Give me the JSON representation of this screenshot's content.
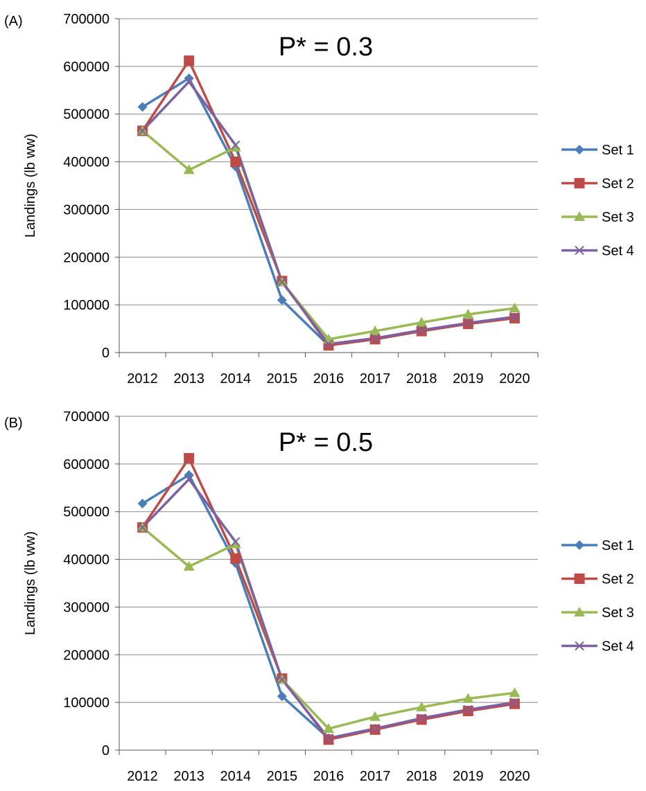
{
  "colors": {
    "set1": "#4a7ebb",
    "set2": "#be4b48",
    "set3": "#98b954",
    "set4": "#7d60a0",
    "grid": "#888888",
    "axis": "#555555"
  },
  "chart_data": [
    {
      "type": "line",
      "panel_label": "(A)",
      "annotation": "P* = 0.3",
      "title": "",
      "xlabel": "",
      "ylabel": "Landings  (lb ww)",
      "categories": [
        "2012",
        "2013",
        "2014",
        "2015",
        "2016",
        "2017",
        "2018",
        "2019",
        "2020"
      ],
      "y_ticks": [
        "0",
        "100000",
        "200000",
        "300000",
        "400000",
        "500000",
        "600000",
        "700000"
      ],
      "ylim": [
        0,
        700000
      ],
      "grid": true,
      "legend_position": "right",
      "series": [
        {
          "name": "Set 1",
          "color": "#4a7ebb",
          "marker": "diamond",
          "values": [
            515000,
            575000,
            390000,
            110000,
            15000,
            28000,
            45000,
            60000,
            73000
          ]
        },
        {
          "name": "Set 2",
          "color": "#be4b48",
          "marker": "square",
          "values": [
            465000,
            612000,
            400000,
            150000,
            15000,
            28000,
            45000,
            60000,
            72000
          ]
        },
        {
          "name": "Set 3",
          "color": "#98b954",
          "marker": "triangle",
          "values": [
            465000,
            383000,
            430000,
            148000,
            28000,
            45000,
            63000,
            80000,
            93000
          ]
        },
        {
          "name": "Set 4",
          "color": "#7d60a0",
          "marker": "x",
          "values": [
            465000,
            568000,
            435000,
            148000,
            18000,
            30000,
            47000,
            62000,
            75000
          ]
        }
      ]
    },
    {
      "type": "line",
      "panel_label": "(B)",
      "annotation": "P* = 0.5",
      "title": "",
      "xlabel": "",
      "ylabel": "Landings (lb ww)",
      "categories": [
        "2012",
        "2013",
        "2014",
        "2015",
        "2016",
        "2017",
        "2018",
        "2019",
        "2020"
      ],
      "y_ticks": [
        "0",
        "100000",
        "200000",
        "300000",
        "400000",
        "500000",
        "600000",
        "700000"
      ],
      "ylim": [
        0,
        700000
      ],
      "grid": true,
      "legend_position": "right",
      "series": [
        {
          "name": "Set 1",
          "color": "#4a7ebb",
          "marker": "diamond",
          "values": [
            517000,
            577000,
            392000,
            113000,
            25000,
            45000,
            65000,
            83000,
            98000
          ]
        },
        {
          "name": "Set 2",
          "color": "#be4b48",
          "marker": "square",
          "values": [
            467000,
            612000,
            402000,
            150000,
            22000,
            43000,
            64000,
            82000,
            97000
          ]
        },
        {
          "name": "Set 3",
          "color": "#98b954",
          "marker": "triangle",
          "values": [
            467000,
            385000,
            432000,
            148000,
            45000,
            70000,
            90000,
            108000,
            120000
          ]
        },
        {
          "name": "Set 4",
          "color": "#7d60a0",
          "marker": "x",
          "values": [
            467000,
            568000,
            437000,
            148000,
            25000,
            45000,
            67000,
            85000,
            100000
          ]
        }
      ]
    }
  ]
}
